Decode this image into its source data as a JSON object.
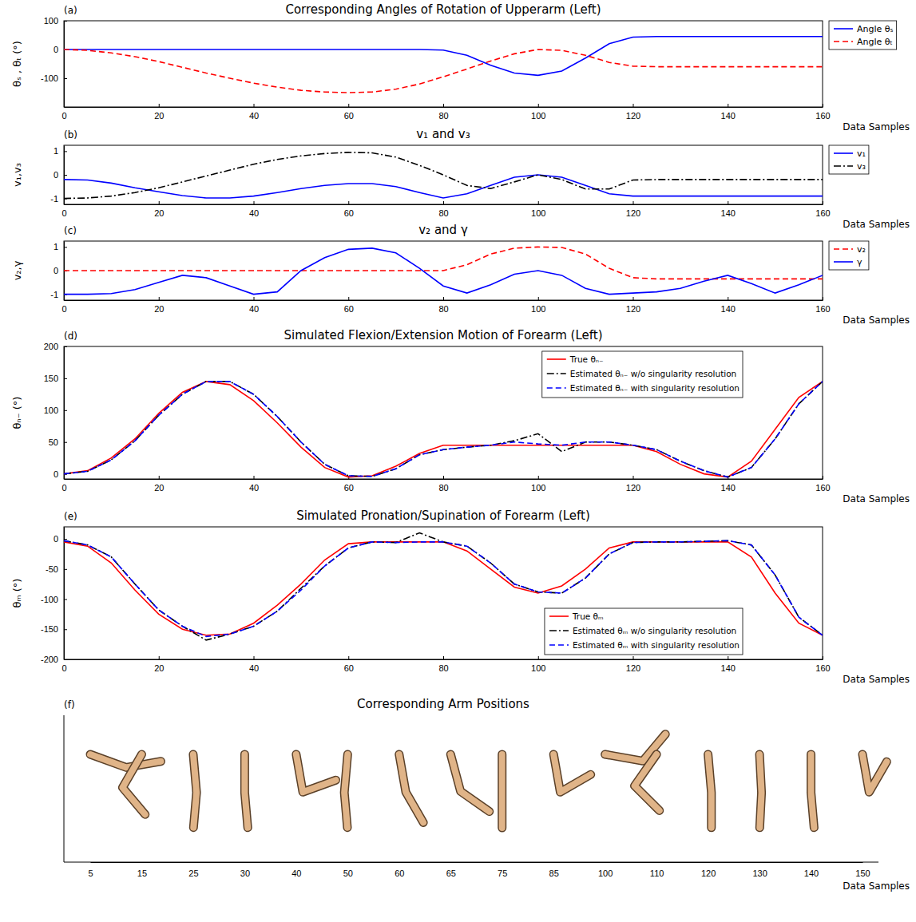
{
  "chart_data": [
    {
      "type": "line",
      "title": "Corresponding Angles of Rotation of Upperarm (Left)",
      "panel": "(a)",
      "xlabel": "Data Samples",
      "ylabel": "θₛ , θₜ (°)",
      "x": [
        0,
        5,
        10,
        15,
        20,
        25,
        30,
        35,
        40,
        45,
        50,
        55,
        60,
        65,
        70,
        75,
        80,
        85,
        90,
        95,
        100,
        105,
        110,
        115,
        120,
        125,
        130,
        135,
        140,
        145,
        150,
        155,
        160
      ],
      "xlim": [
        0,
        160
      ],
      "xticks": [
        0,
        20,
        40,
        60,
        80,
        100,
        120,
        140,
        160
      ],
      "ylim": [
        -200,
        100
      ],
      "yticks": [
        -100,
        0,
        100
      ],
      "legend": "right",
      "series": [
        {
          "name": "Angle θₛ",
          "color": "#0000ff",
          "line_style": "solid",
          "values": [
            0,
            0,
            0,
            0,
            0,
            0,
            0,
            0,
            0,
            0,
            0,
            0,
            0,
            0,
            0,
            0,
            -2,
            -20,
            -55,
            -82,
            -90,
            -75,
            -30,
            20,
            43,
            45,
            45,
            45,
            45,
            45,
            45,
            45,
            45
          ]
        },
        {
          "name": "Angle θₜ",
          "color": "#ff0000",
          "line_style": "dashed",
          "values": [
            0,
            -3,
            -12,
            -25,
            -42,
            -62,
            -82,
            -100,
            -117,
            -131,
            -142,
            -148,
            -150,
            -148,
            -138,
            -120,
            -95,
            -68,
            -40,
            -15,
            0,
            -3,
            -20,
            -45,
            -58,
            -60,
            -60,
            -60,
            -60,
            -60,
            -60,
            -60,
            -60
          ]
        }
      ]
    },
    {
      "type": "line",
      "title": "v₁ and v₃",
      "panel": "(b)",
      "xlabel": "Data Samples",
      "ylabel": "v₁,v₃",
      "x": [
        0,
        5,
        10,
        15,
        20,
        25,
        30,
        35,
        40,
        45,
        50,
        55,
        60,
        65,
        70,
        75,
        80,
        85,
        90,
        95,
        100,
        105,
        110,
        115,
        120,
        125,
        130,
        135,
        140,
        145,
        150,
        155,
        160
      ],
      "xlim": [
        0,
        160
      ],
      "xticks": [
        0,
        20,
        40,
        60,
        80,
        100,
        120,
        140,
        160
      ],
      "ylim": [
        -1.25,
        1.25
      ],
      "yticks": [
        -1,
        0,
        1
      ],
      "legend": "right",
      "series": [
        {
          "name": "v₁",
          "color": "#0000ff",
          "line_style": "solid",
          "values": [
            -0.2,
            -0.22,
            -0.35,
            -0.55,
            -0.72,
            -0.88,
            -0.98,
            -0.98,
            -0.9,
            -0.75,
            -0.58,
            -0.45,
            -0.37,
            -0.37,
            -0.5,
            -0.75,
            -0.98,
            -0.8,
            -0.45,
            -0.1,
            0,
            -0.1,
            -0.45,
            -0.8,
            -0.9,
            -0.9,
            -0.9,
            -0.9,
            -0.9,
            -0.9,
            -0.9,
            -0.9,
            -0.9
          ]
        },
        {
          "name": "v₃",
          "color": "#000000",
          "line_style": "dashdot",
          "values": [
            -1,
            -0.98,
            -0.9,
            -0.75,
            -0.55,
            -0.3,
            -0.05,
            0.2,
            0.45,
            0.65,
            0.8,
            0.9,
            0.95,
            0.93,
            0.75,
            0.4,
            0,
            -0.45,
            -0.58,
            -0.3,
            0,
            -0.2,
            -0.6,
            -0.6,
            -0.22,
            -0.2,
            -0.2,
            -0.2,
            -0.2,
            -0.2,
            -0.2,
            -0.2,
            -0.2
          ]
        }
      ]
    },
    {
      "type": "line",
      "title": "v₂ and γ",
      "panel": "(c)",
      "xlabel": "Data Samples",
      "ylabel": "v₂,γ",
      "x": [
        0,
        5,
        10,
        15,
        20,
        25,
        30,
        35,
        40,
        45,
        50,
        55,
        60,
        65,
        70,
        75,
        80,
        85,
        90,
        95,
        100,
        105,
        110,
        115,
        120,
        125,
        130,
        135,
        140,
        145,
        150,
        155,
        160
      ],
      "xlim": [
        0,
        160
      ],
      "xticks": [
        0,
        20,
        40,
        60,
        80,
        100,
        120,
        140,
        160
      ],
      "ylim": [
        -1.25,
        1.25
      ],
      "yticks": [
        -1,
        0,
        1
      ],
      "legend": "right",
      "series": [
        {
          "name": "v₂",
          "color": "#ff0000",
          "line_style": "dashed",
          "values": [
            0,
            0,
            0,
            0,
            0,
            0,
            0,
            0,
            0,
            0,
            0,
            0,
            0,
            0,
            0,
            0,
            0,
            0.25,
            0.7,
            0.95,
            1,
            0.98,
            0.7,
            0.1,
            -0.3,
            -0.35,
            -0.35,
            -0.35,
            -0.35,
            -0.35,
            -0.35,
            -0.35,
            -0.35
          ]
        },
        {
          "name": "γ",
          "color": "#0000ff",
          "line_style": "solid",
          "values": [
            -1,
            -1,
            -0.97,
            -0.8,
            -0.5,
            -0.2,
            -0.3,
            -0.65,
            -1,
            -0.9,
            0,
            0.55,
            0.9,
            0.95,
            0.75,
            0.1,
            -0.65,
            -0.95,
            -0.6,
            -0.15,
            0,
            -0.2,
            -0.75,
            -1,
            -0.95,
            -0.9,
            -0.75,
            -0.45,
            -0.2,
            -0.55,
            -0.95,
            -0.6,
            -0.2
          ]
        }
      ]
    },
    {
      "type": "line",
      "title": "Simulated Flexion/Extension Motion of Forearm (Left)",
      "panel": "(d)",
      "xlabel": "Data Samples",
      "ylabel": "θₙ₋ (°)",
      "x": [
        0,
        5,
        10,
        15,
        20,
        25,
        30,
        35,
        40,
        45,
        50,
        55,
        60,
        65,
        70,
        75,
        80,
        85,
        90,
        95,
        100,
        105,
        110,
        115,
        120,
        125,
        130,
        135,
        140,
        145,
        150,
        155,
        160
      ],
      "xlim": [
        0,
        160
      ],
      "xticks": [
        0,
        20,
        40,
        60,
        80,
        100,
        120,
        140,
        160
      ],
      "ylim": [
        -8,
        200
      ],
      "yticks": [
        0,
        50,
        100,
        150,
        200
      ],
      "legend": "upper right",
      "series": [
        {
          "name": "True θₙ₋",
          "color": "#ff0000",
          "line_style": "solid",
          "values": [
            0,
            5,
            25,
            55,
            95,
            128,
            145,
            140,
            115,
            80,
            42,
            10,
            -5,
            -3,
            12,
            32,
            45,
            45,
            45,
            45,
            45,
            45,
            45,
            45,
            45,
            35,
            15,
            0,
            -5,
            20,
            70,
            120,
            145
          ]
        },
        {
          "name": "Estimated θₙ₋ w/o singularity resolution",
          "color": "#000000",
          "line_style": "dashdot",
          "values": [
            0,
            4,
            22,
            52,
            92,
            125,
            145,
            145,
            125,
            90,
            50,
            15,
            -3,
            -4,
            8,
            30,
            38,
            42,
            45,
            52,
            63,
            35,
            50,
            50,
            45,
            38,
            20,
            5,
            -5,
            10,
            55,
            110,
            145
          ]
        },
        {
          "name": "Estimated θₙ₋ with singularity resolution",
          "color": "#0000ff",
          "line_style": "dashed",
          "values": [
            0,
            4,
            22,
            52,
            92,
            125,
            145,
            145,
            125,
            90,
            50,
            15,
            -3,
            -4,
            8,
            30,
            38,
            42,
            45,
            50,
            47,
            45,
            50,
            50,
            45,
            38,
            20,
            5,
            -5,
            10,
            55,
            110,
            145
          ]
        }
      ]
    },
    {
      "type": "line",
      "title": "Simulated Pronation/Supination of Forearm (Left)",
      "panel": "(e)",
      "xlabel": "Data Samples",
      "ylabel": "θₘ (°)",
      "x": [
        0,
        5,
        10,
        15,
        20,
        25,
        30,
        35,
        40,
        45,
        50,
        55,
        60,
        65,
        70,
        75,
        80,
        85,
        90,
        95,
        100,
        105,
        110,
        115,
        120,
        125,
        130,
        135,
        140,
        145,
        150,
        155,
        160
      ],
      "xlim": [
        0,
        160
      ],
      "xticks": [
        0,
        20,
        40,
        60,
        80,
        100,
        120,
        140,
        160
      ],
      "ylim": [
        -200,
        20
      ],
      "yticks": [
        -200,
        -150,
        -100,
        -50,
        0
      ],
      "legend": "lower right",
      "series": [
        {
          "name": "True θₘ",
          "color": "#ff0000",
          "line_style": "solid",
          "values": [
            -5,
            -12,
            -40,
            -85,
            -125,
            -150,
            -160,
            -158,
            -140,
            -110,
            -75,
            -35,
            -8,
            -5,
            -5,
            -5,
            -5,
            -20,
            -50,
            -80,
            -90,
            -78,
            -50,
            -15,
            -5,
            -5,
            -5,
            -5,
            -5,
            -30,
            -90,
            -140,
            -160
          ]
        },
        {
          "name": "Estimated θₘ w/o singularity resolution",
          "color": "#000000",
          "line_style": "dashdot",
          "values": [
            -3,
            -10,
            -30,
            -75,
            -118,
            -145,
            -168,
            -158,
            -145,
            -120,
            -82,
            -45,
            -15,
            -5,
            -6,
            10,
            -5,
            -12,
            -40,
            -75,
            -88,
            -90,
            -65,
            -25,
            -6,
            -5,
            -5,
            -4,
            -3,
            -10,
            -60,
            -130,
            -160
          ]
        },
        {
          "name": "Estimated θₘ with singularity resolution",
          "color": "#0000ff",
          "line_style": "dashed",
          "values": [
            -3,
            -10,
            -30,
            -75,
            -118,
            -145,
            -162,
            -158,
            -145,
            -120,
            -85,
            -45,
            -15,
            -5,
            -6,
            -5,
            -5,
            -12,
            -40,
            -75,
            -88,
            -90,
            -65,
            -25,
            -6,
            -5,
            -5,
            -4,
            -3,
            -10,
            -60,
            -130,
            -160
          ]
        }
      ]
    },
    {
      "type": "image_strip",
      "title": "Corresponding Arm Positions",
      "panel": "(f)",
      "xlabel": "Data Samples",
      "categories": [
        5,
        15,
        25,
        30,
        40,
        50,
        60,
        65,
        75,
        85,
        100,
        110,
        120,
        130,
        140,
        150
      ]
    }
  ]
}
